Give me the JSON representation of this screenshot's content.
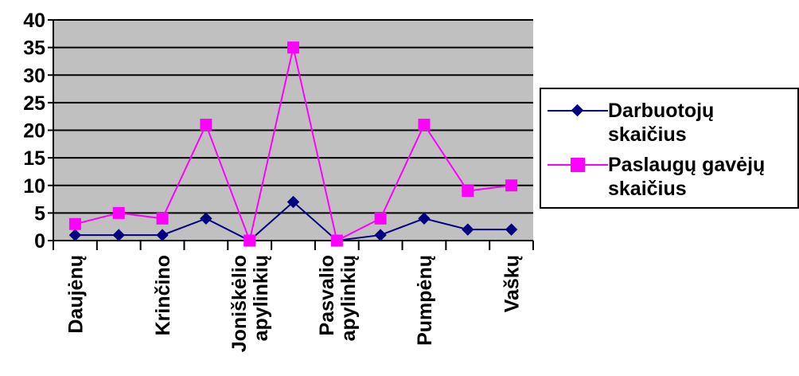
{
  "chart_data": {
    "type": "line",
    "categories": [
      "Daujėnų",
      "",
      "Krinčino",
      "",
      "Joniškėlio apylinkių",
      "",
      "Pasvalio apylinkių",
      "",
      "Pumpėnų",
      "",
      "Vaškų"
    ],
    "x_label_lines": [
      [
        "Daujėnų"
      ],
      [],
      [
        "Krinčino"
      ],
      [],
      [
        "Joniškėlio",
        "apylinkių"
      ],
      [],
      [
        "Pasvalio",
        "apylinkių"
      ],
      [],
      [
        "Pumpėnų"
      ],
      [],
      [
        "Vaškų"
      ]
    ],
    "series": [
      {
        "name": "Darbuotojų skaičius",
        "values": [
          1,
          1,
          1,
          4,
          0,
          7,
          0,
          1,
          4,
          2,
          2
        ],
        "color": "#000080",
        "marker": "diamond"
      },
      {
        "name": "Paslaugų gavėjų skaičius",
        "values": [
          3,
          5,
          4,
          21,
          0,
          35,
          0,
          4,
          21,
          9,
          10
        ],
        "color": "#ff00ff",
        "marker": "square"
      }
    ],
    "yticks": [
      0,
      5,
      10,
      15,
      20,
      25,
      30,
      35,
      40
    ],
    "ylim": [
      0,
      40
    ],
    "grid": true,
    "plot_background": "#c0c0c0",
    "legend": "right",
    "title": "",
    "xlabel": "",
    "ylabel": ""
  }
}
